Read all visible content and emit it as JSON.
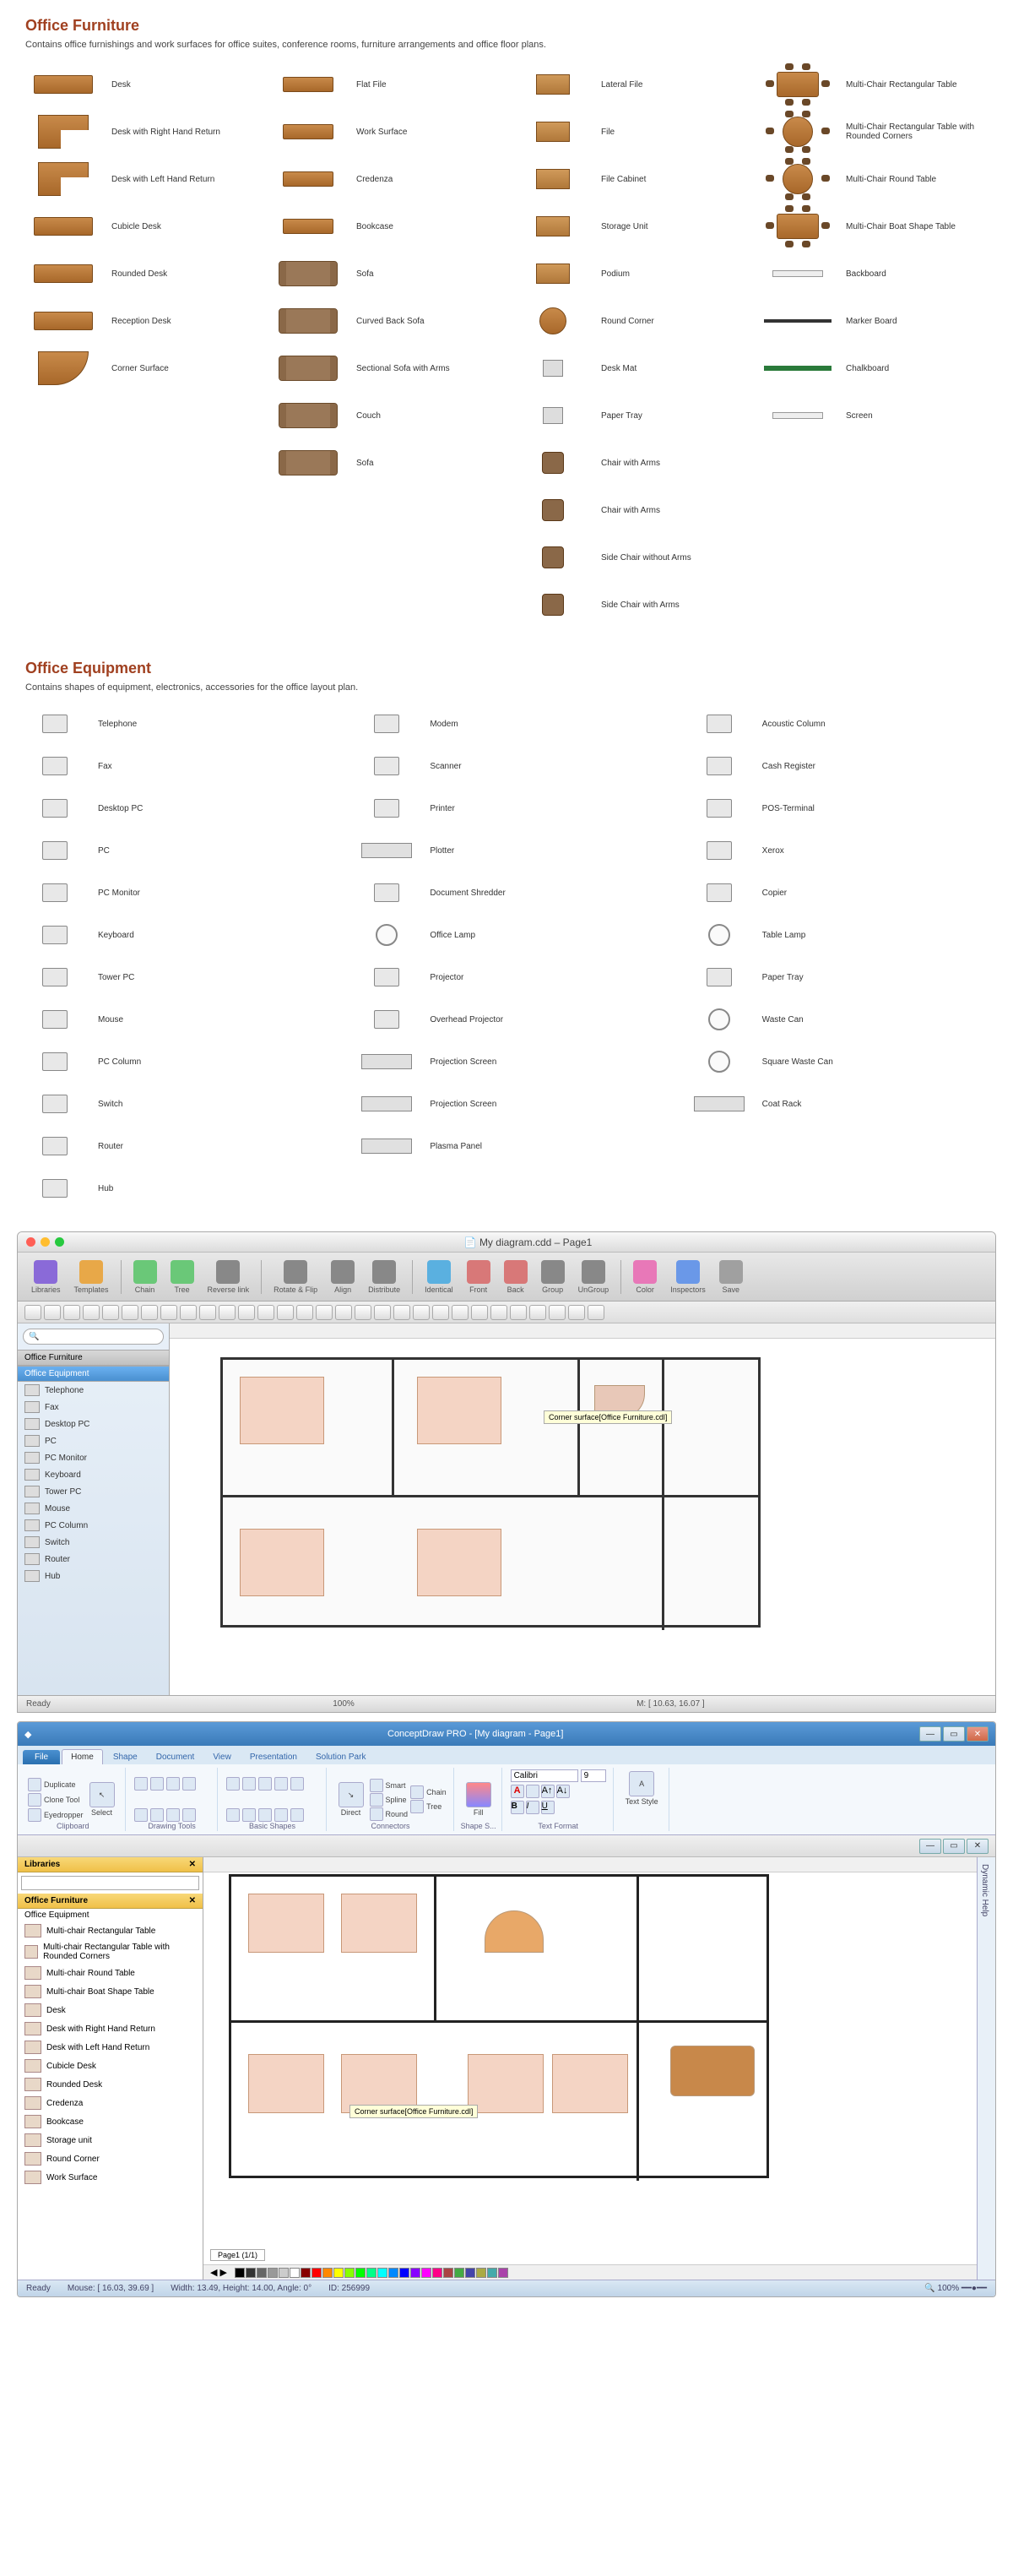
{
  "sections": {
    "furniture": {
      "title": "Office Furniture",
      "desc": "Contains office furnishings and work surfaces for office suites, conference rooms, furniture arrangements and office floor plans.",
      "col1": [
        "Desk",
        "Desk with Right Hand Return",
        "Desk with Left Hand Return",
        "Cubicle Desk",
        "Rounded Desk",
        "Reception Desk",
        "Corner Surface"
      ],
      "col2": [
        "Flat File",
        "Work Surface",
        "Credenza",
        "Bookcase",
        "Sofa",
        "Curved Back Sofa",
        "Sectional Sofa with Arms",
        "Couch",
        "Sofa"
      ],
      "col3": [
        "Lateral File",
        "File",
        "File Cabinet",
        "Storage Unit",
        "Podium",
        "Round Corner",
        "Desk Mat",
        "Paper Tray",
        "Chair with Arms",
        "Chair with Arms",
        "Side Chair without Arms",
        "Side Chair with Arms"
      ],
      "col4": [
        "Multi-Chair Rectangular Table",
        "Multi-Chair Rectangular Table with Rounded Corners",
        "Multi-Chair Round Table",
        "Multi-Chair Boat Shape Table",
        "Backboard",
        "Marker Board",
        "Chalkboard",
        "Screen"
      ]
    },
    "equipment": {
      "title": "Office Equipment",
      "desc": "Contains shapes of equipment, electronics, accessories for the office layout plan.",
      "col1": [
        "Telephone",
        "Fax",
        "Desktop PC",
        "PC",
        "PC Monitor",
        "Keyboard",
        "Tower PC",
        "Mouse",
        "PC Column",
        "Switch",
        "Router",
        "Hub"
      ],
      "col2": [
        "Modem",
        "Scanner",
        "Printer",
        "Plotter",
        "Document Shredder",
        "Office Lamp",
        "Projector",
        "Overhead Projector",
        "Projection Screen",
        "Projection Screen",
        "Plasma Panel"
      ],
      "col3": [
        "Acoustic Column",
        "Cash Register",
        "POS-Terminal",
        "Xerox",
        "Copier",
        "Table Lamp",
        "Paper Tray",
        "Waste Can",
        "Square Waste Can",
        "Coat Rack"
      ]
    }
  },
  "macApp": {
    "title": "My diagram.cdd – Page1",
    "toolbar": [
      "Libraries",
      "Templates",
      "Chain",
      "Tree",
      "Reverse link",
      "Rotate & Flip",
      "Align",
      "Distribute",
      "Identical",
      "Front",
      "Back",
      "Group",
      "UnGroup",
      "Color",
      "Inspectors",
      "Save"
    ],
    "toolbarColors": [
      "#8a6ad8",
      "#e8a848",
      "#6ac878",
      "#6ac878",
      "#888",
      "#888",
      "#888",
      "#888",
      "#5ab0e0",
      "#d87878",
      "#d87878",
      "#888",
      "#888",
      "#e878b8",
      "#6a98e8",
      "#a0a0a0"
    ],
    "searchPlaceholder": "",
    "libHeaders": [
      "Office Furniture",
      "Office Equipment"
    ],
    "libItems": [
      "Telephone",
      "Fax",
      "Desktop PC",
      "PC",
      "PC Monitor",
      "Keyboard",
      "Tower PC",
      "Mouse",
      "PC Column",
      "Switch",
      "Router",
      "Hub"
    ],
    "tooltip": "Corner surface[Office Furniture.cdl]",
    "statusLeft": "Ready",
    "zoom": "100%",
    "coords": "M: [ 10.63, 16.07 ]"
  },
  "winApp": {
    "title": "ConceptDraw PRO - [My diagram - Page1]",
    "tabs": [
      "File",
      "Home",
      "Shape",
      "Document",
      "View",
      "Presentation",
      "Solution Park"
    ],
    "ribbonGroups": {
      "clipboard": {
        "label": "Clipboard",
        "items": [
          "Duplicate",
          "Clone Tool",
          "Eyedropper",
          "Select"
        ]
      },
      "drawing": {
        "label": "Drawing Tools"
      },
      "shapes": {
        "label": "Basic Shapes"
      },
      "connectors": {
        "label": "Connectors",
        "items": [
          "Smart",
          "Spline",
          "Round",
          "Direct",
          "Chain",
          "Tree"
        ]
      },
      "fill": {
        "label": "Shape S...",
        "item": "Fill"
      },
      "font": {
        "label": "Text Format",
        "name": "Calibri",
        "size": "9"
      },
      "textstyle": {
        "label": "",
        "item": "Text Style"
      }
    },
    "sidebarTitle": "Libraries",
    "libHeaders": [
      "Office Furniture",
      "Office Equipment"
    ],
    "libItems": [
      "Multi-chair Rectangular Table",
      "Multi-chair Rectangular Table with Rounded Corners",
      "Multi-chair Round Table",
      "Multi-chair Boat Shape Table",
      "Desk",
      "Desk with Right Hand Return",
      "Desk with Left Hand Return",
      "Cubicle Desk",
      "Rounded Desk",
      "Credenza",
      "Bookcase",
      "Storage unit",
      "Round Corner",
      "Work Surface"
    ],
    "tooltip": "Corner surface[Office Furniture.cdl]",
    "pageTab": "Page1 (1/1)",
    "status": {
      "ready": "Ready",
      "mouse": "Mouse: [ 16.03, 39.69 ]",
      "dims": "Width: 13.49,   Height: 14.00,   Angle: 0°",
      "id": "ID: 256999",
      "zoom": "100%"
    },
    "colors": [
      "#000",
      "#333",
      "#666",
      "#999",
      "#ccc",
      "#fff",
      "#800",
      "#f00",
      "#f80",
      "#ff0",
      "#8f0",
      "#0f0",
      "#0f8",
      "#0ff",
      "#08f",
      "#00f",
      "#80f",
      "#f0f",
      "#f08",
      "#a44",
      "#4a4",
      "#44a",
      "#aa4",
      "#4aa",
      "#a4a"
    ],
    "rightTab": "Dynamic Help"
  }
}
